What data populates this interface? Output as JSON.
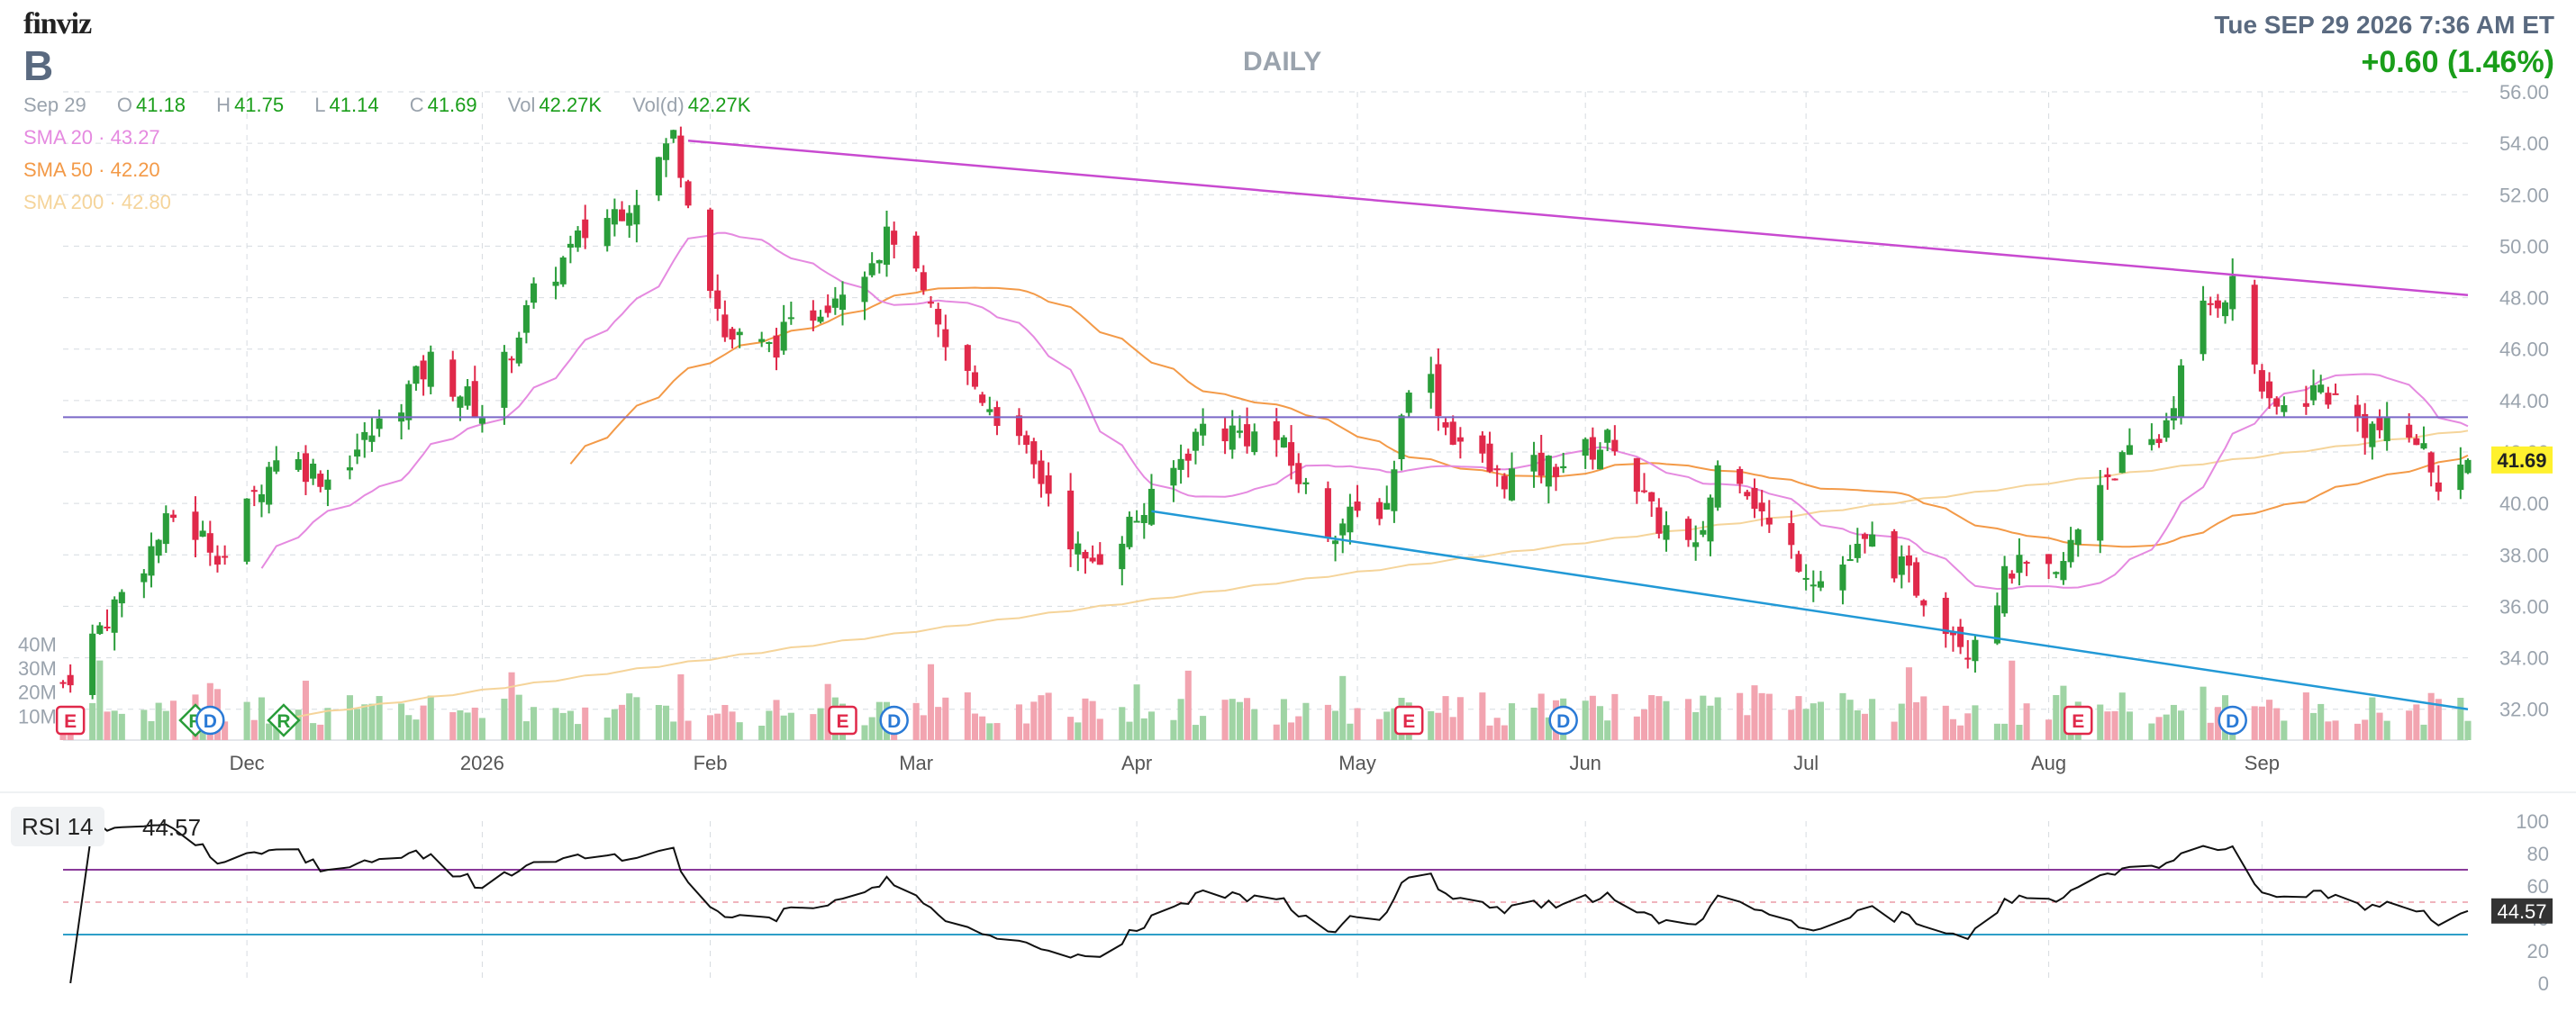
{
  "header": {
    "logo": "finviz",
    "ticker": "B",
    "period": "DAILY",
    "datetime": "Tue SEP 29 2026 7:36 AM ET",
    "change": "+0.60 (1.46%)",
    "change_color": "#1a9e1a"
  },
  "ohlc": {
    "date": "Sep 29",
    "o_label": "O",
    "o": "41.18",
    "h_label": "H",
    "h": "41.75",
    "l_label": "L",
    "l": "41.14",
    "c_label": "C",
    "c": "41.69",
    "vol_label": "Vol",
    "vol": "42.27K",
    "vold_label": "Vol(d)",
    "vold": "42.27K",
    "value_color": "#1a9e1a"
  },
  "moving_averages": [
    {
      "label": "SMA 20",
      "value": "43.27",
      "color": "#e58ae0"
    },
    {
      "label": "SMA 50",
      "value": "42.20",
      "color": "#f39a48"
    },
    {
      "label": "SMA 200",
      "value": "42.80",
      "color": "#f5d49a"
    }
  ],
  "rsi": {
    "label": "RSI 14",
    "value": "44.57"
  },
  "colors": {
    "up": "#2a9d3a",
    "down": "#e0294a",
    "up_volume": "#9fd4a4",
    "down_volume": "#f2a4b0",
    "resistance_line": "#c84ad0",
    "support_line": "#2299d6",
    "horizontal_line": "#7a68c8",
    "last_price_bg": "#fff12e",
    "grid": "#d6dbe0",
    "rsi_overbought": "#8a3a9a",
    "rsi_oversold": "#2e9ec8"
  },
  "chart_data": {
    "type": "candlestick",
    "price_axis": {
      "ticks": [
        32,
        34,
        36,
        38,
        40,
        42,
        44,
        46,
        48,
        50,
        52,
        54,
        56
      ],
      "range": [
        30.8,
        56.0
      ]
    },
    "volume_axis": {
      "tick_labels": [
        "40M",
        "30M",
        "20M",
        "10M"
      ],
      "ticks": [
        40,
        30,
        20,
        10
      ],
      "unit": "M"
    },
    "x_axis": {
      "labels": [
        "Dec",
        "2026",
        "Feb",
        "Mar",
        "Apr",
        "May",
        "Jun",
        "Jul",
        "Aug",
        "Sep"
      ],
      "label_dates": [
        "2025-12-01",
        "2026-01-02",
        "2026-02-02",
        "2026-03-02",
        "2026-04-01",
        "2026-05-01",
        "2026-06-01",
        "2026-07-01",
        "2026-08-03",
        "2026-09-01"
      ],
      "range": [
        "2025-11-06",
        "2026-09-29"
      ]
    },
    "last_price": 41.69,
    "sma_last": {
      "sma20": 43.27,
      "sma50": 42.2,
      "sma200": 42.8
    },
    "horizontal_line": {
      "price": 43.35
    },
    "trendline_resistance": {
      "start": [
        "2026-01-30",
        54.1
      ],
      "end": [
        "2026-09-29",
        48.1
      ]
    },
    "trendline_support": {
      "start": [
        "2026-04-03",
        39.7
      ],
      "end": [
        "2026-09-29",
        32.0
      ]
    },
    "events": [
      {
        "type": "E",
        "date": "2025-11-07"
      },
      {
        "type": "R",
        "date": "2025-11-24"
      },
      {
        "type": "D",
        "date": "2025-11-26"
      },
      {
        "type": "R",
        "date": "2025-12-06"
      },
      {
        "type": "E",
        "date": "2026-02-20"
      },
      {
        "type": "D",
        "date": "2026-02-27"
      },
      {
        "type": "E",
        "date": "2026-05-08"
      },
      {
        "type": "D",
        "date": "2026-05-29"
      },
      {
        "type": "E",
        "date": "2026-08-07"
      },
      {
        "type": "D",
        "date": "2026-08-28"
      }
    ],
    "price_path_keypoints": [
      [
        "2025-11-06",
        33.0
      ],
      [
        "2025-11-14",
        36.5
      ],
      [
        "2025-11-21",
        39.5
      ],
      [
        "2025-11-28",
        38.0
      ],
      [
        "2025-12-05",
        42.0
      ],
      [
        "2025-12-12",
        41.0
      ],
      [
        "2025-12-19",
        43.0
      ],
      [
        "2025-12-26",
        45.5
      ],
      [
        "2026-01-02",
        43.5
      ],
      [
        "2026-01-09",
        48.0
      ],
      [
        "2026-01-16",
        50.5
      ],
      [
        "2026-01-23",
        52.0
      ],
      [
        "2026-01-28",
        54.3
      ],
      [
        "2026-02-04",
        46.5
      ],
      [
        "2026-02-10",
        46.0
      ],
      [
        "2026-02-18",
        48.0
      ],
      [
        "2026-02-27",
        50.5
      ],
      [
        "2026-03-06",
        46.0
      ],
      [
        "2026-03-13",
        43.5
      ],
      [
        "2026-03-20",
        40.5
      ],
      [
        "2026-03-25",
        37.5
      ],
      [
        "2026-04-03",
        40.0
      ],
      [
        "2026-04-10",
        43.0
      ],
      [
        "2026-04-20",
        42.5
      ],
      [
        "2026-04-27",
        39.0
      ],
      [
        "2026-05-05",
        40.0
      ],
      [
        "2026-05-09",
        46.5
      ],
      [
        "2026-05-13",
        43.0
      ],
      [
        "2026-05-20",
        41.0
      ],
      [
        "2026-05-28",
        41.5
      ],
      [
        "2026-06-05",
        42.5
      ],
      [
        "2026-06-10",
        39.5
      ],
      [
        "2026-06-16",
        38.0
      ],
      [
        "2026-06-20",
        42.5
      ],
      [
        "2026-06-26",
        39.0
      ],
      [
        "2026-07-03",
        37.0
      ],
      [
        "2026-07-10",
        38.5
      ],
      [
        "2026-07-17",
        36.5
      ],
      [
        "2026-07-23",
        34.5
      ],
      [
        "2026-07-29",
        37.5
      ],
      [
        "2026-08-04",
        37.0
      ],
      [
        "2026-08-10",
        41.0
      ],
      [
        "2026-08-18",
        42.5
      ],
      [
        "2026-08-24",
        47.5
      ],
      [
        "2026-08-28",
        48.5
      ],
      [
        "2026-09-02",
        43.5
      ],
      [
        "2026-09-09",
        44.5
      ],
      [
        "2026-09-15",
        43.0
      ],
      [
        "2026-09-22",
        42.5
      ],
      [
        "2026-09-25",
        41.0
      ],
      [
        "2026-09-29",
        41.69
      ]
    ],
    "rsi_panel": {
      "ticks": [
        0,
        20,
        40,
        60,
        80,
        100
      ],
      "overbought": 70,
      "oversold": 30,
      "mid": 50,
      "last": 44.57
    }
  }
}
